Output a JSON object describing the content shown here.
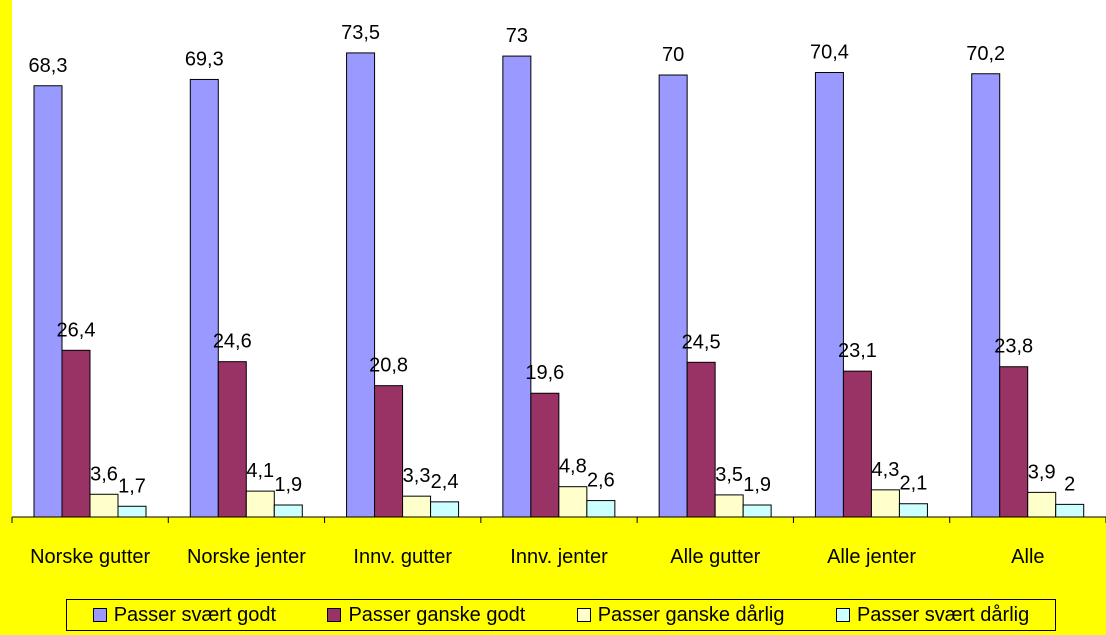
{
  "chart_data": {
    "type": "bar",
    "categories": [
      "Norske gutter",
      "Norske jenter",
      "Innv. gutter",
      "Innv. jenter",
      "Alle gutter",
      "Alle jenter",
      "Alle"
    ],
    "series": [
      {
        "name": "Passer svært godt",
        "color": "#9999ff",
        "values": [
          68.3,
          69.3,
          73.5,
          73,
          70,
          70.4,
          70.2
        ],
        "labels": [
          "68,3",
          "69,3",
          "73,5",
          "73",
          "70",
          "70,4",
          "70,2"
        ]
      },
      {
        "name": "Passer ganske godt",
        "color": "#993366",
        "values": [
          26.4,
          24.6,
          20.8,
          19.6,
          24.5,
          23.1,
          23.8
        ],
        "labels": [
          "26,4",
          "24,6",
          "20,8",
          "19,6",
          "24,5",
          "23,1",
          "23,8"
        ]
      },
      {
        "name": "Passer ganske dårlig",
        "color": "#ffffcc",
        "values": [
          3.6,
          4.1,
          3.3,
          4.8,
          3.5,
          4.3,
          3.9
        ],
        "labels": [
          "3,6",
          "4,1",
          "3,3",
          "4,8",
          "3,5",
          "4,3",
          "3,9"
        ]
      },
      {
        "name": "Passer svært dårlig",
        "color": "#ccffff",
        "values": [
          1.7,
          1.9,
          2.4,
          2.6,
          1.9,
          2.1,
          2
        ],
        "labels": [
          "1,7",
          "1,9",
          "2,4",
          "2,6",
          "1,9",
          "2,1",
          "2"
        ]
      }
    ],
    "ylim": [
      0,
      80
    ],
    "grid": false,
    "legend_position": "bottom"
  }
}
